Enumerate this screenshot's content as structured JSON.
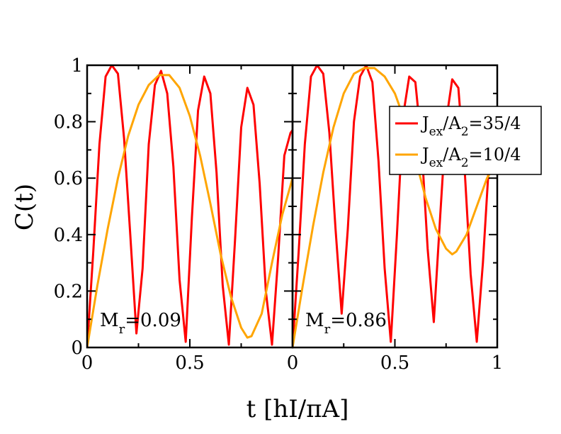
{
  "chart_data": {
    "type": "line",
    "ylabel": "C(t)",
    "xlabel": "t [hI/πA]",
    "ylim": [
      0,
      1
    ],
    "grid": false,
    "legend_placement": "right",
    "y_ticks": [
      "0",
      "0.2",
      "0.4",
      "0.6",
      "0.8",
      "1"
    ],
    "panels": [
      {
        "x_ticks": [
          "0",
          "0.5"
        ],
        "xlim": [
          0,
          1
        ],
        "annotation": {
          "main": "M",
          "sub": "r",
          "rest": "=0.09"
        },
        "series": [
          {
            "legend_index": 0,
            "color": "#ff0000",
            "x": [
              0,
              0.03,
              0.06,
              0.09,
              0.12,
              0.15,
              0.18,
              0.21,
              0.24,
              0.27,
              0.3,
              0.33,
              0.36,
              0.39,
              0.42,
              0.45,
              0.48,
              0.51,
              0.54,
              0.57,
              0.6,
              0.63,
              0.66,
              0.69,
              0.72,
              0.75,
              0.78,
              0.81,
              0.84,
              0.87,
              0.9,
              0.93,
              0.96,
              0.99,
              1.0
            ],
            "y": [
              0,
              0.34,
              0.72,
              0.96,
              1.0,
              0.97,
              0.74,
              0.4,
              0.05,
              0.28,
              0.72,
              0.93,
              0.98,
              0.9,
              0.64,
              0.24,
              0.02,
              0.46,
              0.84,
              0.96,
              0.9,
              0.62,
              0.22,
              0.01,
              0.38,
              0.78,
              0.92,
              0.86,
              0.58,
              0.2,
              0.01,
              0.32,
              0.68,
              0.76,
              0.77
            ]
          },
          {
            "legend_index": 1,
            "color": "#ffa500",
            "x": [
              0,
              0.05,
              0.1,
              0.15,
              0.2,
              0.25,
              0.3,
              0.35,
              0.4,
              0.45,
              0.5,
              0.55,
              0.6,
              0.65,
              0.7,
              0.75,
              0.78,
              0.8,
              0.85,
              0.9,
              0.95,
              1.0
            ],
            "y": [
              0,
              0.22,
              0.42,
              0.6,
              0.75,
              0.86,
              0.93,
              0.965,
              0.965,
              0.92,
              0.82,
              0.68,
              0.51,
              0.33,
              0.18,
              0.07,
              0.035,
              0.04,
              0.12,
              0.3,
              0.47,
              0.6
            ]
          }
        ]
      },
      {
        "x_ticks": [
          "0",
          "0.5",
          "1"
        ],
        "xlim": [
          0,
          1
        ],
        "annotation": {
          "main": "M",
          "sub": "r",
          "rest": "=0.86"
        },
        "series": [
          {
            "legend_index": 0,
            "color": "#ff0000",
            "x": [
              0,
              0.03,
              0.06,
              0.09,
              0.12,
              0.15,
              0.18,
              0.21,
              0.24,
              0.27,
              0.3,
              0.33,
              0.36,
              0.39,
              0.42,
              0.45,
              0.48,
              0.51,
              0.54,
              0.57,
              0.6,
              0.63,
              0.66,
              0.69,
              0.72,
              0.75,
              0.78,
              0.81,
              0.84,
              0.87,
              0.9,
              0.93,
              0.96,
              0.99,
              1.0
            ],
            "y": [
              0,
              0.34,
              0.72,
              0.96,
              1.0,
              0.97,
              0.76,
              0.42,
              0.12,
              0.42,
              0.8,
              0.96,
              1.0,
              0.94,
              0.66,
              0.28,
              0.02,
              0.4,
              0.82,
              0.96,
              0.94,
              0.72,
              0.35,
              0.09,
              0.45,
              0.8,
              0.95,
              0.92,
              0.64,
              0.26,
              0.02,
              0.3,
              0.66,
              0.82,
              0.85
            ]
          },
          {
            "legend_index": 1,
            "color": "#ffa500",
            "x": [
              0,
              0.05,
              0.1,
              0.15,
              0.2,
              0.25,
              0.3,
              0.35,
              0.4,
              0.45,
              0.5,
              0.55,
              0.6,
              0.65,
              0.7,
              0.75,
              0.78,
              0.8,
              0.85,
              0.9,
              0.95,
              1.0
            ],
            "y": [
              0,
              0.22,
              0.43,
              0.62,
              0.78,
              0.9,
              0.97,
              0.99,
              0.99,
              0.96,
              0.9,
              0.8,
              0.67,
              0.53,
              0.42,
              0.35,
              0.33,
              0.34,
              0.4,
              0.5,
              0.6,
              0.66
            ]
          }
        ]
      }
    ],
    "legend": [
      {
        "main": "J",
        "sub1": "ex",
        "mid": "/A",
        "sub2": "2",
        "rest": "=35/4",
        "color": "#ff0000"
      },
      {
        "main": "J",
        "sub1": "ex",
        "mid": "/A",
        "sub2": "2",
        "rest": "=10/4",
        "color": "#ffa500"
      }
    ]
  }
}
